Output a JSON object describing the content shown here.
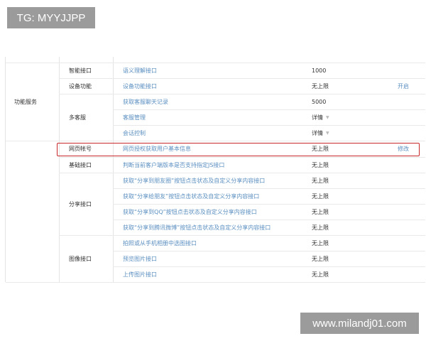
{
  "watermarks": {
    "top_left": "TG: MYYJJPP",
    "bottom_right": "www.milandj01.com"
  },
  "colors": {
    "link": "#5b8fc0",
    "highlight_border": "#c8282c"
  },
  "groups": [
    {
      "label": "功能服务",
      "rows": [
        0,
        4
      ]
    },
    {
      "label": "",
      "rows": [
        5,
        13
      ]
    }
  ],
  "categories": [
    {
      "label": "智能接口",
      "rows": [
        0,
        0
      ]
    },
    {
      "label": "设备功能",
      "rows": [
        1,
        1
      ]
    },
    {
      "label": "多客服",
      "rows": [
        2,
        4
      ]
    },
    {
      "label": "网页帐号",
      "rows": [
        5,
        5
      ]
    },
    {
      "label": "基础接口",
      "rows": [
        6,
        6
      ]
    },
    {
      "label": "分享接口",
      "rows": [
        7,
        10
      ]
    },
    {
      "label": "图像接口",
      "rows": [
        11,
        13
      ]
    }
  ],
  "rows": [
    {
      "name": "语义理解接口",
      "value": "1000",
      "action": ""
    },
    {
      "name": "设备功能接口",
      "value": "无上限",
      "action": "开启"
    },
    {
      "name": "获取客服聊天记录",
      "value": "5000",
      "action": ""
    },
    {
      "name": "客服管理",
      "value": "详情",
      "dropdown": true,
      "action": ""
    },
    {
      "name": "会话控制",
      "value": "详情",
      "dropdown": true,
      "action": ""
    },
    {
      "name": "网页授权获取用户基本信息",
      "value": "无上限",
      "action": "修改",
      "highlighted": true
    },
    {
      "name": "判断当前客户端版本是否支持指定JS接口",
      "value": "无上限",
      "action": ""
    },
    {
      "name": "获取“分享到朋友圈”按钮点击状态及自定义分享内容接口",
      "value": "无上限",
      "action": ""
    },
    {
      "name": "获取“分享给朋友”按钮点击状态及自定义分享内容接口",
      "value": "无上限",
      "action": ""
    },
    {
      "name": "获取“分享到QQ”按钮点击状态及自定义分享内容接口",
      "value": "无上限",
      "action": ""
    },
    {
      "name": "获取“分享到腾讯微博”按钮点击状态及自定义分享内容接口",
      "value": "无上限",
      "action": ""
    },
    {
      "name": "拍照或从手机相册中选图接口",
      "value": "无上限",
      "action": ""
    },
    {
      "name": "预览图片接口",
      "value": "无上限",
      "action": ""
    },
    {
      "name": "上传图片接口",
      "value": "无上限",
      "action": ""
    }
  ]
}
